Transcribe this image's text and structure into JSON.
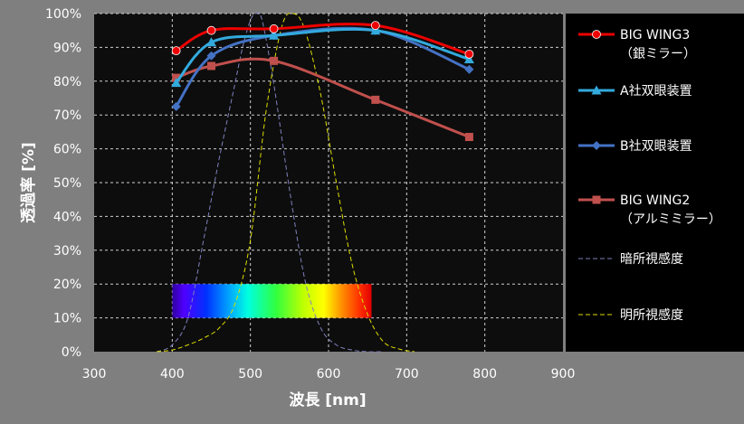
{
  "chart_data": {
    "type": "line",
    "xlabel": "波長 [nm]",
    "ylabel": "透過率 [%]",
    "xlim": [
      300,
      900
    ],
    "ylim": [
      0,
      100
    ],
    "x_ticks": [
      300,
      400,
      500,
      600,
      700,
      800,
      900
    ],
    "y_ticks": [
      0,
      10,
      20,
      30,
      40,
      50,
      60,
      70,
      80,
      90,
      100
    ],
    "y_tick_labels": [
      "0%",
      "10%",
      "20%",
      "30%",
      "40%",
      "50%",
      "60%",
      "70%",
      "80%",
      "90%",
      "100%"
    ],
    "grid": "on",
    "legend_position": "right",
    "spectrum_band": {
      "x_start": 400,
      "x_end": 655,
      "y_start": 10,
      "y_end": 20
    },
    "series": [
      {
        "name": "BIG WING3",
        "name_line2": "（銀ミラー）",
        "color": "#ee0000",
        "marker": "circle",
        "x": [
          405,
          450,
          530,
          660,
          780
        ],
        "y": [
          89,
          95,
          95.5,
          96.5,
          88
        ]
      },
      {
        "name": "A社双眼装置",
        "color": "#33aadd",
        "marker": "triangle",
        "x": [
          405,
          450,
          530,
          660,
          780
        ],
        "y": [
          79.5,
          91.5,
          93.5,
          95,
          86.5
        ]
      },
      {
        "name": "B社双眼装置",
        "color": "#4472c4",
        "marker": "diamond",
        "x": [
          405,
          450,
          530,
          660,
          780
        ],
        "y": [
          72.5,
          87.5,
          93.5,
          95,
          83.5
        ]
      },
      {
        "name": "BIG WING2",
        "name_line2": "（アルミミラー）",
        "color": "#c0504d",
        "marker": "square",
        "x": [
          405,
          450,
          530,
          660,
          780
        ],
        "y": [
          81,
          84.5,
          86,
          74.5,
          63.5
        ]
      },
      {
        "name": "暗所視感度",
        "color": "#8080c0",
        "style": "dashed",
        "x": [
          380,
          400,
          420,
          440,
          460,
          480,
          490,
          500,
          507,
          515,
          530,
          550,
          570,
          590,
          610,
          630,
          650,
          670
        ],
        "y": [
          0,
          2,
          10,
          33,
          57,
          79,
          90,
          98,
          100,
          98,
          79,
          48,
          21,
          7,
          2,
          0.5,
          0,
          0
        ]
      },
      {
        "name": "明所視感度",
        "color": "#dddd00",
        "style": "dashed",
        "x": [
          380,
          400,
          420,
          440,
          460,
          480,
          500,
          520,
          540,
          555,
          570,
          590,
          610,
          630,
          650,
          670,
          690,
          710
        ],
        "y": [
          0,
          0.5,
          2,
          4,
          7,
          14,
          33,
          71,
          96,
          100,
          95,
          76,
          50,
          26,
          11,
          3,
          0.8,
          0
        ]
      }
    ]
  }
}
